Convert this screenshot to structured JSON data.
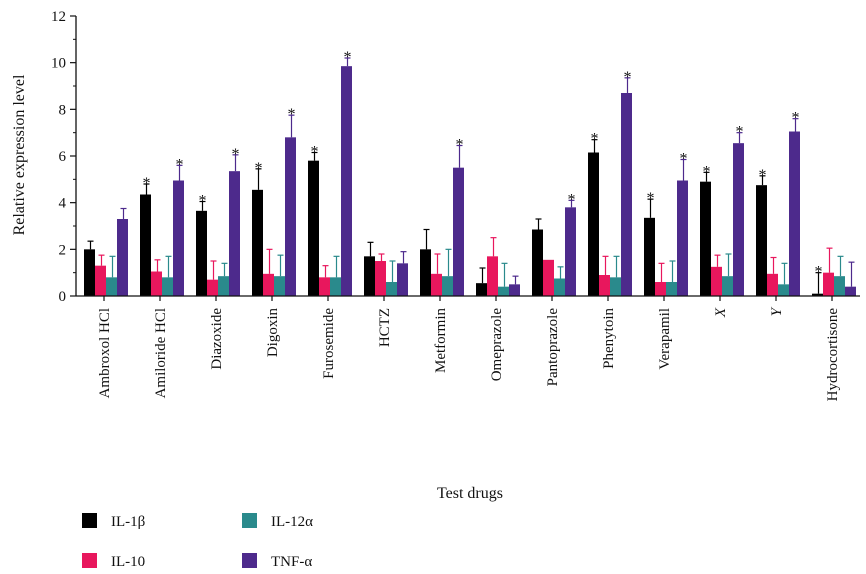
{
  "chart_data": {
    "type": "bar",
    "xlabel": "Test drugs",
    "ylabel": "Relative expression level",
    "ylim": [
      0,
      12
    ],
    "yticks": [
      "0",
      "2",
      "4",
      "6",
      "8",
      "10",
      "12"
    ],
    "grid": false,
    "legend_position": "bottom-left",
    "significance_marker": "*",
    "categories": [
      "Ambroxol HCl",
      "Amiloride HCl",
      "Diazoxide",
      "Digoxin",
      "Furosemide",
      "HCTZ",
      "Metformin",
      "Omeprazole",
      "Pantoprazole",
      "Phenytoin",
      "Verapamil",
      "X",
      "Y",
      "Hydrocortisone"
    ],
    "series": [
      {
        "name": "IL-1β",
        "color": "#000000",
        "values": [
          2.0,
          4.35,
          3.65,
          4.55,
          5.8,
          1.7,
          2.0,
          0.55,
          2.85,
          6.15,
          3.35,
          4.9,
          4.75,
          0.1
        ],
        "errors": [
          0.35,
          0.45,
          0.4,
          0.9,
          0.35,
          0.6,
          0.85,
          0.65,
          0.45,
          0.55,
          0.8,
          0.4,
          0.4,
          0.9
        ],
        "significant": [
          false,
          true,
          true,
          true,
          true,
          false,
          false,
          false,
          false,
          true,
          true,
          true,
          true,
          true
        ]
      },
      {
        "name": "IL-10",
        "color": "#e8175d",
        "values": [
          1.3,
          1.05,
          0.7,
          0.95,
          0.8,
          1.5,
          0.95,
          1.7,
          1.55,
          0.9,
          0.6,
          1.25,
          0.95,
          1.0
        ],
        "errors": [
          0.45,
          0.5,
          0.8,
          1.05,
          0.5,
          0.3,
          0.85,
          0.8,
          0.0,
          0.8,
          0.8,
          0.5,
          0.7,
          1.05
        ],
        "significant": [
          false,
          false,
          false,
          false,
          false,
          false,
          false,
          false,
          false,
          false,
          false,
          false,
          false,
          false
        ]
      },
      {
        "name": "IL-12α",
        "color": "#2a8a8c",
        "values": [
          0.8,
          0.8,
          0.85,
          0.85,
          0.8,
          0.6,
          0.85,
          0.4,
          0.75,
          0.8,
          0.6,
          0.85,
          0.5,
          0.85
        ],
        "errors": [
          0.9,
          0.9,
          0.55,
          0.9,
          0.9,
          0.9,
          1.15,
          1.0,
          0.5,
          0.9,
          0.9,
          0.95,
          0.9,
          0.85
        ],
        "significant": [
          false,
          false,
          false,
          false,
          false,
          false,
          false,
          false,
          false,
          false,
          false,
          false,
          false,
          false
        ]
      },
      {
        "name": "TNF-α",
        "color": "#4d2a8c",
        "values": [
          3.3,
          4.95,
          5.35,
          6.8,
          9.85,
          1.4,
          5.5,
          0.5,
          3.8,
          8.7,
          4.95,
          6.55,
          7.05,
          0.4
        ],
        "errors": [
          0.45,
          0.65,
          0.7,
          0.95,
          0.35,
          0.5,
          0.95,
          0.35,
          0.3,
          0.65,
          0.9,
          0.45,
          0.55,
          1.05
        ],
        "significant": [
          false,
          true,
          true,
          true,
          true,
          false,
          true,
          false,
          true,
          true,
          true,
          true,
          true,
          false
        ]
      }
    ]
  }
}
